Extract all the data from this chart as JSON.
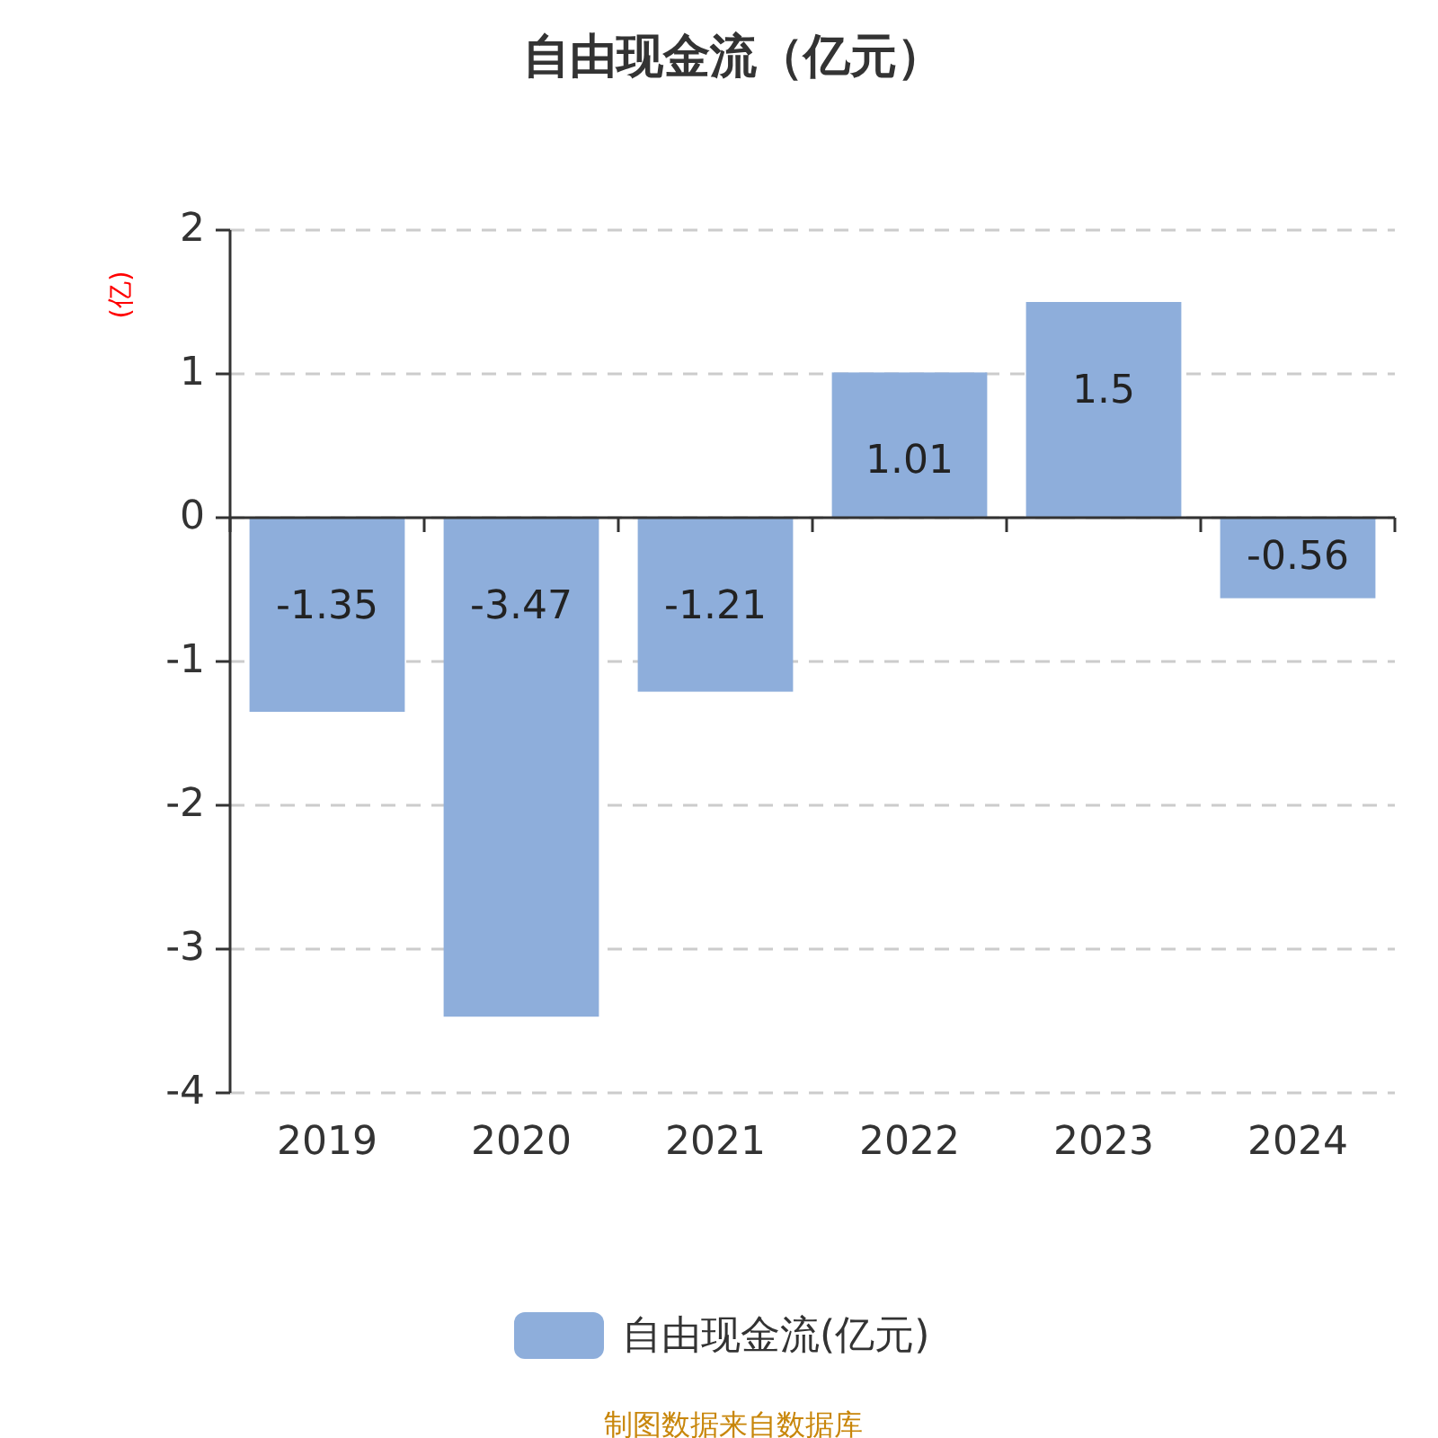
{
  "chart_data": {
    "type": "bar",
    "title": "自由现金流（亿元）",
    "ylabel": "(亿)",
    "categories": [
      "2019",
      "2020",
      "2021",
      "2022",
      "2023",
      "2024"
    ],
    "series": [
      {
        "name": "自由现金流(亿元)",
        "color": "#8eaedb",
        "values": [
          -1.35,
          -3.47,
          -1.21,
          1.01,
          1.5,
          -0.56
        ]
      }
    ],
    "ylim": [
      -4,
      2
    ],
    "yticks": [
      -4,
      -3,
      -2,
      -1,
      0,
      1,
      2
    ],
    "grid": "y",
    "legend": "bottom",
    "data_labels": true,
    "annotations": [
      "制图数据来自数据库"
    ]
  }
}
